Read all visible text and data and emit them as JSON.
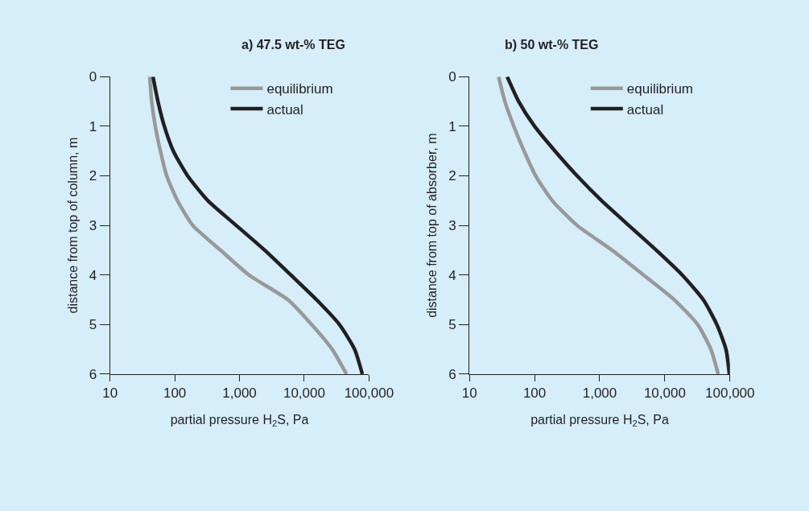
{
  "chart_data": [
    {
      "type": "line",
      "title": "a) 47.5 wt-% TEG",
      "xlabel": "partial pressure H$_{2}$S, Pa",
      "ylabel": "distance from top of column, m",
      "log": "x",
      "legend": "top right",
      "grid": false,
      "xlim": [
        10,
        100000
      ],
      "xticks": [
        10,
        100,
        {
          "value": 1000,
          "label": "1,000"
        },
        {
          "value": 10000,
          "label": "10,000"
        },
        {
          "value": 100000,
          "label": "100,000"
        }
      ],
      "ylim": [
        6,
        0
      ],
      "yticks": [
        0,
        1,
        2,
        3,
        4,
        5,
        6
      ],
      "series": [
        {
          "name": "equilibrium",
          "color": "#999999",
          "x": [
            41,
            44,
            50,
            60,
            75,
            110,
            190,
            510,
            1400,
            5600,
            13000,
            27000,
            45000
          ],
          "values": [
            0,
            0.5,
            1,
            1.5,
            2,
            2.5,
            3,
            3.5,
            4,
            4.5,
            5,
            5.5,
            6
          ]
        },
        {
          "name": "actual",
          "color": "#231f20",
          "x": [
            46,
            55,
            69,
            95,
            158,
            325,
            890,
            2450,
            6200,
            15500,
            35000,
            60000,
            79000
          ],
          "values": [
            0,
            0.5,
            1,
            1.5,
            2,
            2.5,
            3,
            3.5,
            4,
            4.5,
            5,
            5.5,
            6
          ]
        }
      ]
    },
    {
      "type": "line",
      "title": "b) 50 wt-% TEG",
      "xlabel": "partial pressure H$_{2}$S, Pa",
      "ylabel": "distance from top of absorber, m",
      "log": "x",
      "legend": "top right",
      "grid": false,
      "xlim": [
        10,
        100000
      ],
      "xticks": [
        10,
        100,
        {
          "value": 1000,
          "label": "1,000"
        },
        {
          "value": 10000,
          "label": "10,000"
        },
        {
          "value": 100000,
          "label": "100,000"
        }
      ],
      "ylim": [
        6,
        0
      ],
      "yticks": [
        0,
        1,
        2,
        3,
        4,
        5,
        6
      ],
      "series": [
        {
          "name": "equilibrium",
          "color": "#999999",
          "x": [
            28,
            35,
            48,
            69,
            104,
            187,
            450,
            1550,
            4700,
            14000,
            32000,
            51000,
            66000
          ],
          "values": [
            0,
            0.5,
            1,
            1.5,
            2,
            2.5,
            3,
            3.5,
            4,
            4.5,
            5,
            5.5,
            6
          ]
        },
        {
          "name": "actual",
          "color": "#231f20",
          "x": [
            38,
            57,
            100,
            206,
            450,
            1070,
            2800,
            7400,
            18500,
            39000,
            63000,
            87000,
            98000
          ],
          "values": [
            0,
            0.5,
            1,
            1.5,
            2,
            2.5,
            3,
            3.5,
            4,
            4.5,
            5,
            5.5,
            6
          ]
        }
      ]
    }
  ]
}
